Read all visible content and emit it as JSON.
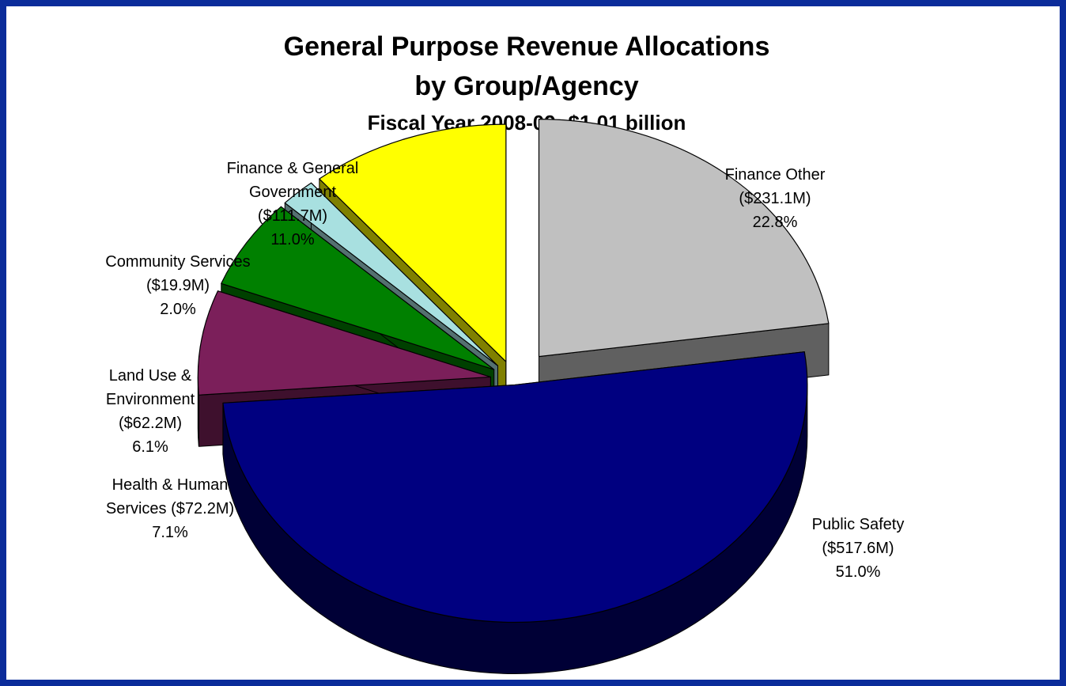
{
  "chart_data": {
    "type": "pie",
    "title": "General Purpose Revenue Allocations",
    "title_line2": "by Group/Agency",
    "subtitle": "Fiscal Year 2008-09: $1.01 billion",
    "three_d": true,
    "exploded": true,
    "slices": [
      {
        "label_lines": [
          "Finance Other",
          "($231.1M)",
          "22.8%"
        ],
        "value": 231.1,
        "percent": 22.8,
        "color": "#c0c0c0"
      },
      {
        "label_lines": [
          "Public Safety",
          "($517.6M)",
          "51.0%"
        ],
        "value": 517.6,
        "percent": 51.0,
        "color": "#000080"
      },
      {
        "label_lines": [
          "Health & Human",
          "Services ($72.2M)",
          "7.1%"
        ],
        "value": 72.2,
        "percent": 7.1,
        "color": "#7b1f5a"
      },
      {
        "label_lines": [
          "Land Use &",
          "Environment",
          "($62.2M)",
          "6.1%"
        ],
        "value": 62.2,
        "percent": 6.1,
        "color": "#008000"
      },
      {
        "label_lines": [
          "Community Services",
          "($19.9M)",
          "2.0%"
        ],
        "value": 19.9,
        "percent": 2.0,
        "color": "#a8e0e0"
      },
      {
        "label_lines": [
          "Finance & General",
          "Government",
          "($111.7M)",
          "11.0%"
        ],
        "value": 111.7,
        "percent": 11.0,
        "color": "#ffff00"
      }
    ]
  }
}
